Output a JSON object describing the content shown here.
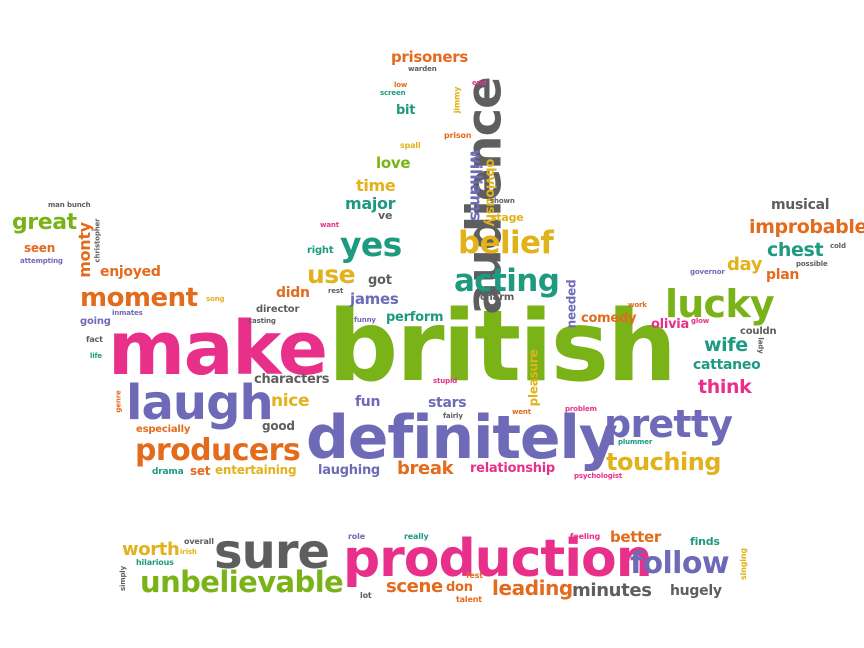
{
  "words": {
    "british": "british",
    "make": "make",
    "definitely": "definitely",
    "production": "production",
    "audience": "audience",
    "sure": "sure",
    "laugh": "laugh",
    "lucky": "lucky",
    "pretty": "pretty",
    "producers": "producers",
    "unbelievable": "unbelievable",
    "follow": "follow",
    "acting": "acting",
    "belief": "belief",
    "yes": "yes",
    "moment": "moment",
    "improbable": "improbable",
    "touching": "touching",
    "great": "great",
    "use": "use",
    "leading": "leading",
    "scene": "scene",
    "minutes": "minutes",
    "chest": "chest",
    "williams": "williams",
    "worth": "worth",
    "prisoners": "prisoners",
    "break": "break",
    "wife": "wife",
    "think": "think",
    "musical": "musical",
    "day": "day",
    "nice": "nice",
    "major": "major",
    "time": "time",
    "love": "love",
    "enjoyed": "enjoyed",
    "monty": "monty",
    "obviously": "obviously",
    "fun": "fun",
    "stars": "stars",
    "james": "james",
    "characters": "characters",
    "perform": "perform",
    "didn": "didn",
    "comedy": "comedy",
    "olivia": "olivia",
    "cattaneo": "cattaneo",
    "better": "better",
    "hugely": "hugely",
    "entertaining": "entertaining",
    "laughing": "laughing",
    "relationship": "relationship",
    "plan": "plan",
    "needed": "needed",
    "pleasure": "pleasure",
    "seen": "seen",
    "don": "don",
    "got": "got",
    "set": "set",
    "good": "good",
    "especially": "especially",
    "director": "director",
    "stage": "stage",
    "charm": "charm",
    "right": "right",
    "bit": "bit",
    "finds": "finds",
    "couldn": "couldn",
    "ve": "ve",
    "going": "going",
    "drama": "drama",
    "hilarious": "hilarious",
    "irish": "irish",
    "overall": "overall",
    "role": "role",
    "really": "really",
    "feeling": "feeling",
    "fest": "fest",
    "lot": "lot",
    "talent": "talent",
    "singing": "singing",
    "simply": "simply",
    "spall": "spall",
    "prison": "prison",
    "jimmy": "jimmy",
    "end": "end",
    "low": "low",
    "screen": "screen",
    "warden": "warden",
    "shown": "shown",
    "want": "want",
    "rest": "rest",
    "funny": "funny",
    "song": "song",
    "inmates": "inmates",
    "casting": "casting",
    "fact": "fact",
    "life": "life",
    "genre": "genre",
    "stupid": "stupid",
    "fairly": "fairly",
    "went": "went",
    "problem": "problem",
    "plummer": "plummer",
    "psychologist": "psychologist",
    "work": "work",
    "glow": "glow",
    "lady": "lady",
    "governor": "governor",
    "possible": "possible",
    "cold": "cold",
    "man": "man",
    "bunch": "bunch",
    "christopher": "christopher",
    "attempting": "attempting"
  }
}
